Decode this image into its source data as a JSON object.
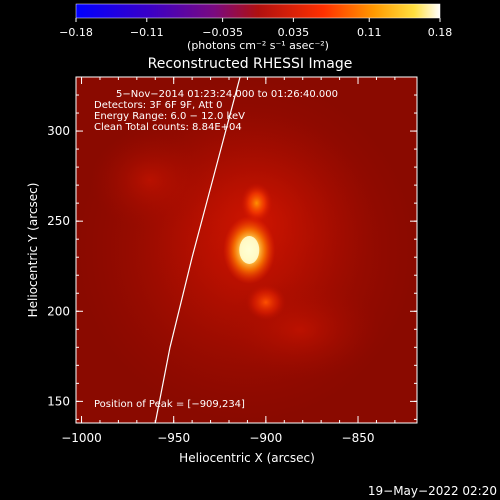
{
  "colorbar": {
    "ticks": [
      -0.18,
      -0.11,
      -0.035,
      0.035,
      0.11,
      0.18
    ],
    "tick_labels": [
      "−0.18",
      "−0.11",
      "−0.035",
      "0.035",
      "0.11",
      "0.18"
    ],
    "unit_label": "(photons cm⁻² s⁻¹ asec⁻²)",
    "range": [
      -0.18,
      0.18
    ]
  },
  "chart_data": {
    "type": "heatmap",
    "title": "Reconstructed RHESSI Image",
    "xlabel": "Heliocentric X (arcsec)",
    "ylabel": "Heliocentric Y (arcsec)",
    "xlim": [
      -1003,
      -818
    ],
    "ylim": [
      138,
      330
    ],
    "xticks": [
      -1000,
      -950,
      -900,
      -850
    ],
    "xtick_labels": [
      "−1000",
      "−950",
      "−900",
      "−850"
    ],
    "yticks": [
      150,
      200,
      250,
      300
    ],
    "ytick_labels": [
      "150",
      "200",
      "250",
      "300"
    ],
    "annotations": [
      "5−Nov−2014 01:23:24.000 to 01:26:40.000",
      "Detectors: 3F 6F 9F, Att 0",
      "Energy Range: 6.0 − 12.0 keV",
      "Clean    Total counts: 8.84E+04"
    ],
    "peak_label": "Position of Peak = [−909,234]",
    "peak": [
      -909,
      234
    ],
    "sources": [
      {
        "x": -909,
        "y": 234,
        "value": 0.18
      },
      {
        "x": -905,
        "y": 260,
        "value": 0.11
      },
      {
        "x": -900,
        "y": 205,
        "value": 0.09
      }
    ],
    "limb_curve": [
      [
        -960,
        138
      ],
      [
        -952,
        180
      ],
      [
        -940,
        230
      ],
      [
        -927,
        280
      ],
      [
        -914,
        330
      ]
    ]
  },
  "footer": {
    "date": "19−May−2022 02:20"
  }
}
